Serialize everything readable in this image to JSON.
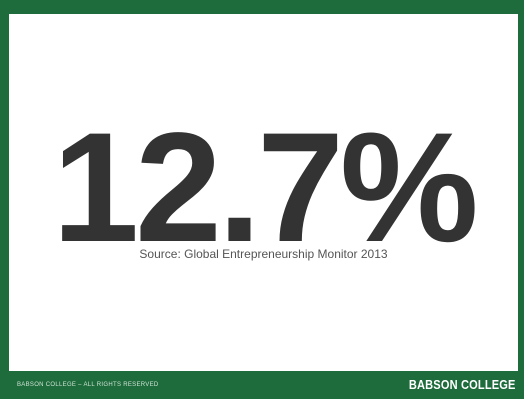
{
  "slide": {
    "statistic": "12.7%",
    "source": "Source: Global Entrepreneurship Monitor 2013"
  },
  "footer": {
    "copyright": "BABSON COLLEGE – ALL RIGHTS RESERVED",
    "brand": "BABSON COLLEGE"
  },
  "colors": {
    "brand_green": "#1e6b3c",
    "statistic_text": "#333333"
  }
}
